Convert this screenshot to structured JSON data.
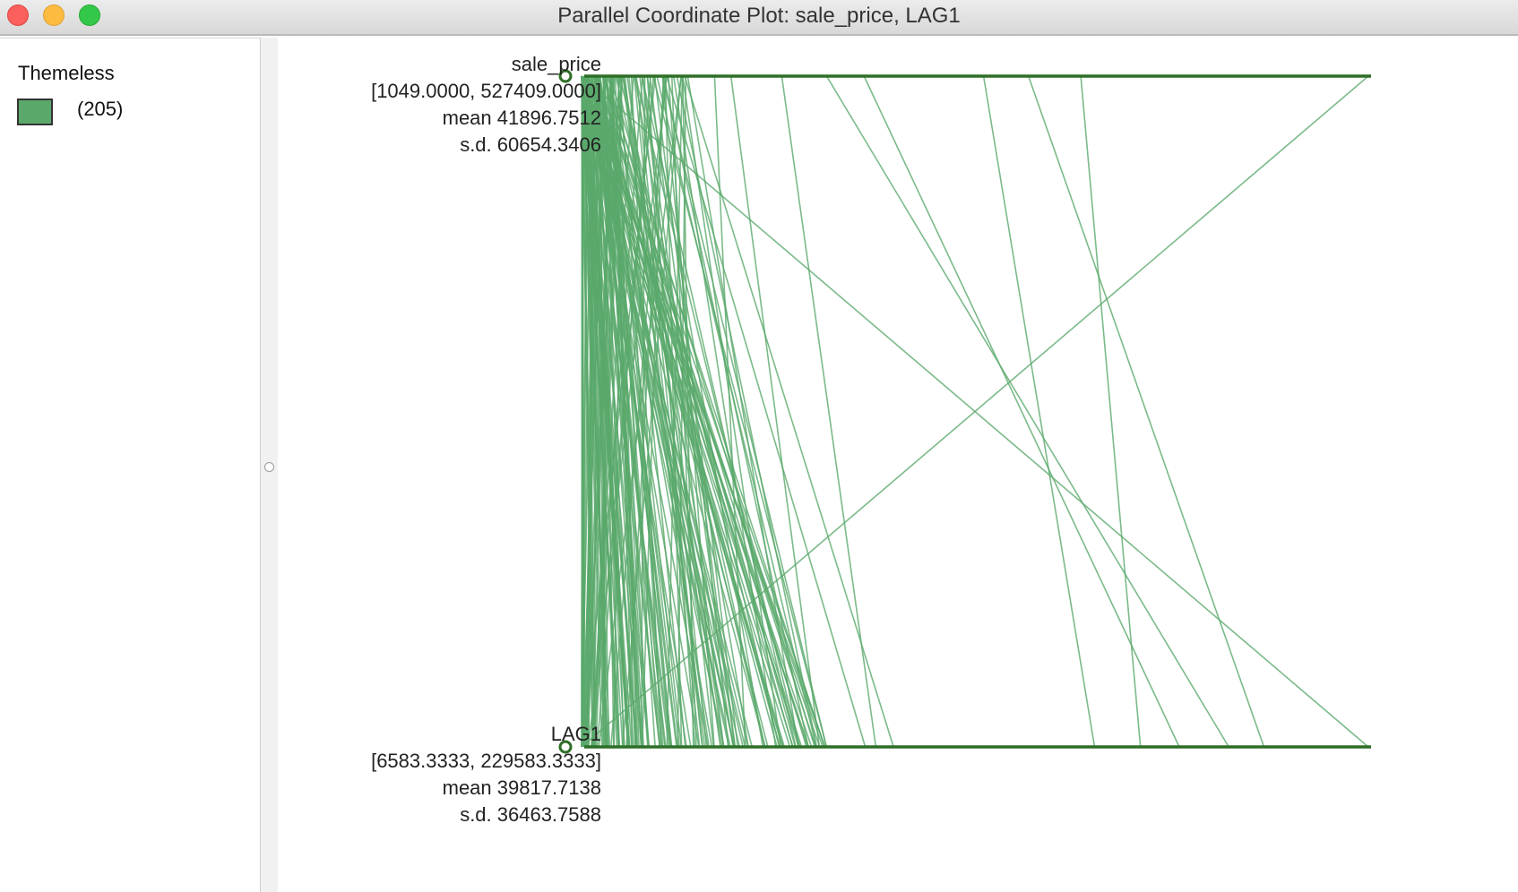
{
  "window": {
    "title": "Parallel Coordinate Plot: sale_price, LAG1"
  },
  "legend": {
    "title": "Themeless",
    "count_label": "(205)",
    "swatch_color": "#5aa96b"
  },
  "colors": {
    "line": "#5aa96b",
    "axis": "#2e6e27"
  },
  "axes": [
    {
      "name": "sale_price",
      "range_label": "[1049.0000, 527409.0000]",
      "mean_label": "mean  41896.7512",
      "sd_label": "s.d.  60654.3406"
    },
    {
      "name": "LAG1",
      "range_label": "[6583.3333, 229583.3333]",
      "mean_label": "mean  39817.7138",
      "sd_label": "s.d.  36463.7588"
    }
  ],
  "chart_data": {
    "type": "parallel-coordinates",
    "n_observations": 205,
    "variables": [
      "sale_price",
      "LAG1"
    ],
    "ranges": [
      [
        1049.0,
        527409.0
      ],
      [
        6583.3333,
        229583.3333
      ]
    ],
    "notable_observations": [
      {
        "sale_price": 527409.0,
        "LAG1": 6583.3333
      },
      {
        "sale_price": 1049.0,
        "LAG1": 229583.3333
      },
      {
        "sale_price": 335000.0,
        "LAG1": 165000.0
      },
      {
        "sale_price": 300000.0,
        "LAG1": 200000.0
      },
      {
        "sale_price": 190000.0,
        "LAG1": 176000.0
      },
      {
        "sale_price": 165000.0,
        "LAG1": 190000.0
      },
      {
        "sale_price": 58000.0,
        "LAG1": 87000.0
      },
      {
        "sale_price": 55000.0,
        "LAG1": 76000.0
      },
      {
        "sale_price": 90000.0,
        "LAG1": 53000.0
      },
      {
        "sale_price": 101000.0,
        "LAG1": 74000.0
      },
      {
        "sale_price": 72000.0,
        "LAG1": 68000.0
      },
      {
        "sale_price": 70000.0,
        "LAG1": 95000.0
      },
      {
        "sale_price": 135000.0,
        "LAG1": 90000.0
      },
      {
        "sale_price": 270000.0,
        "LAG1": 152000.0
      },
      {
        "sale_price": 45000.0,
        "LAG1": 58000.0
      },
      {
        "sale_price": 42000.0,
        "LAG1": 50000.0
      },
      {
        "sale_price": 40000.0,
        "LAG1": 44000.0
      },
      {
        "sale_price": 30000.0,
        "LAG1": 40000.0
      },
      {
        "sale_price": 25000.0,
        "LAG1": 36000.0
      },
      {
        "sale_price": 20000.0,
        "LAG1": 32000.0
      }
    ]
  }
}
